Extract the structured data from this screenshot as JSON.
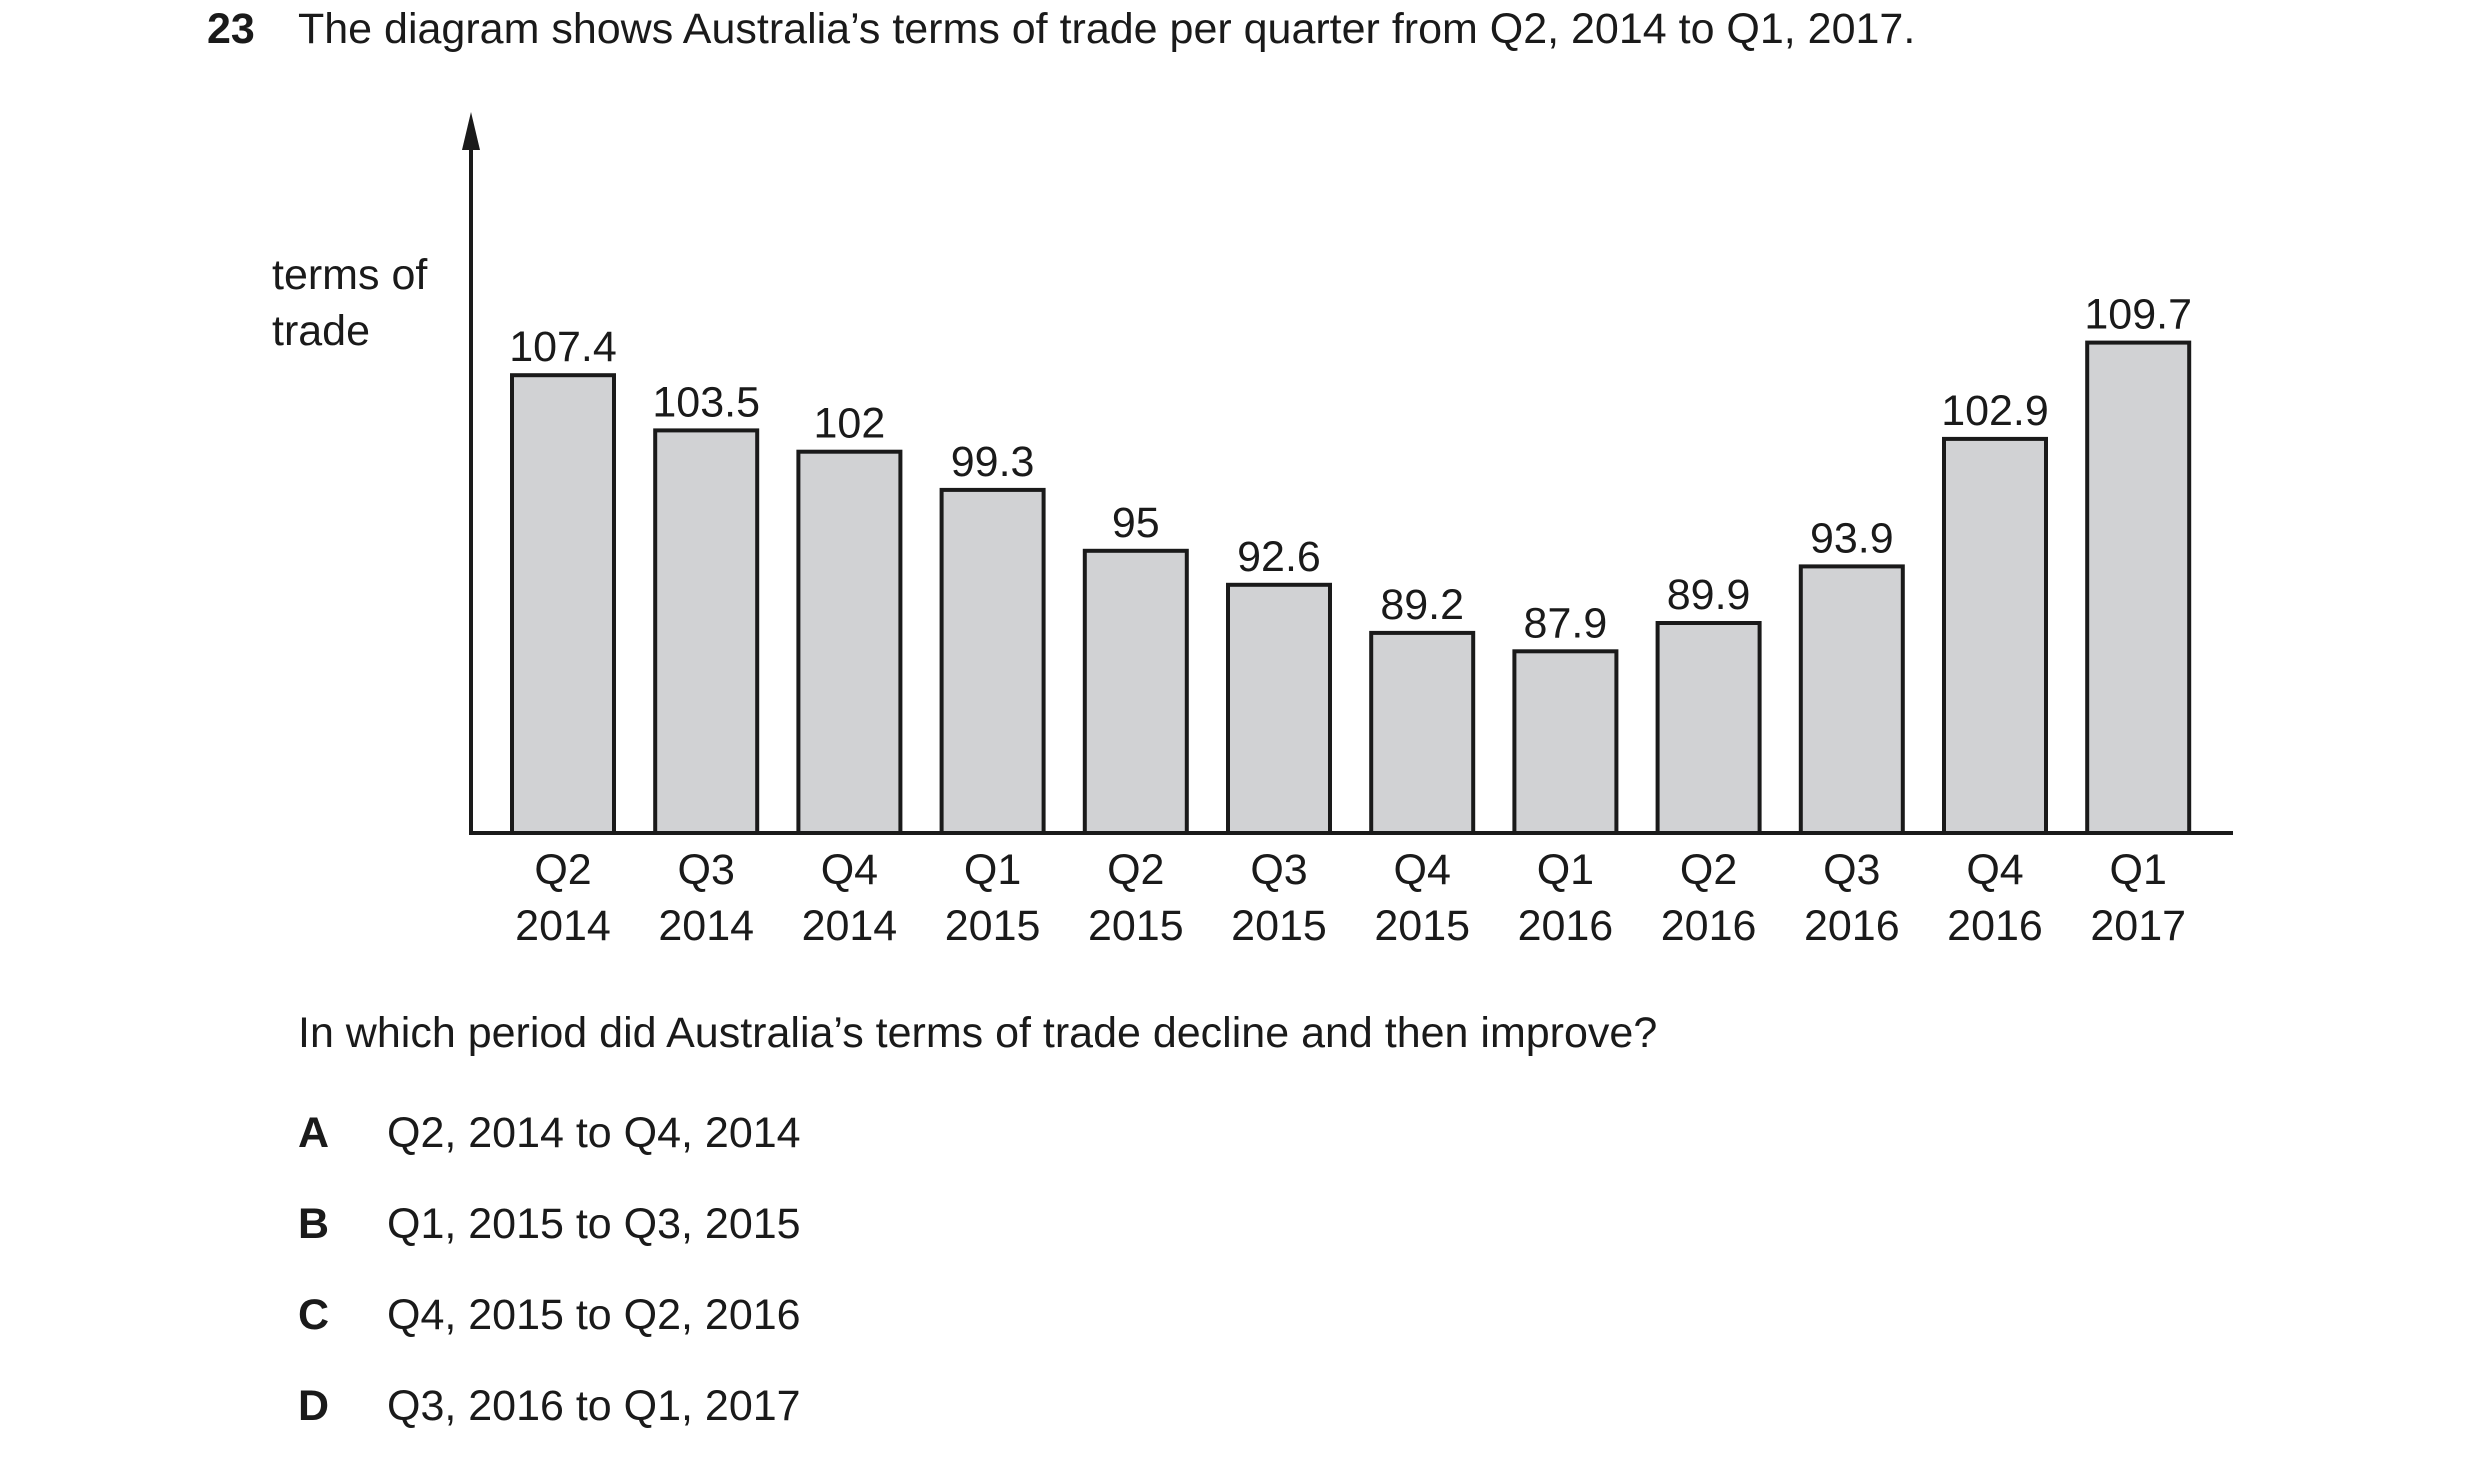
{
  "question": {
    "number": "23",
    "stem": "The diagram shows Australia’s terms of trade per quarter from Q2, 2014 to Q1, 2017.",
    "prompt": "In which period did Australia’s terms of trade decline and then improve?",
    "options": [
      {
        "letter": "A",
        "text": "Q2, 2014 to Q4, 2014"
      },
      {
        "letter": "B",
        "text": "Q1, 2015 to Q3, 2015"
      },
      {
        "letter": "C",
        "text": "Q4, 2015 to Q2, 2016"
      },
      {
        "letter": "D",
        "text": "Q3, 2016 to Q1, 2017"
      }
    ]
  },
  "chart_data": {
    "type": "bar",
    "ylabel": [
      "terms of",
      "trade"
    ],
    "xlabel": "",
    "categories": [
      [
        "Q2",
        "2014"
      ],
      [
        "Q3",
        "2014"
      ],
      [
        "Q4",
        "2014"
      ],
      [
        "Q1",
        "2015"
      ],
      [
        "Q2",
        "2015"
      ],
      [
        "Q3",
        "2015"
      ],
      [
        "Q4",
        "2015"
      ],
      [
        "Q1",
        "2016"
      ],
      [
        "Q2",
        "2016"
      ],
      [
        "Q3",
        "2016"
      ],
      [
        "Q4",
        "2016"
      ],
      [
        "Q1",
        "2017"
      ]
    ],
    "values": [
      107.4,
      103.5,
      102,
      99.3,
      95,
      92.6,
      89.2,
      87.9,
      89.9,
      93.9,
      102.9,
      109.7
    ],
    "value_labels": [
      "107.4",
      "103.5",
      "102",
      "99.3",
      "95",
      "92.6",
      "89.2",
      "87.9",
      "89.9",
      "93.9",
      "102.9",
      "109.7"
    ],
    "grid": false,
    "legend": "none",
    "bar_color": "#d1d2d4",
    "bar_stroke": "#1a1a1a"
  }
}
